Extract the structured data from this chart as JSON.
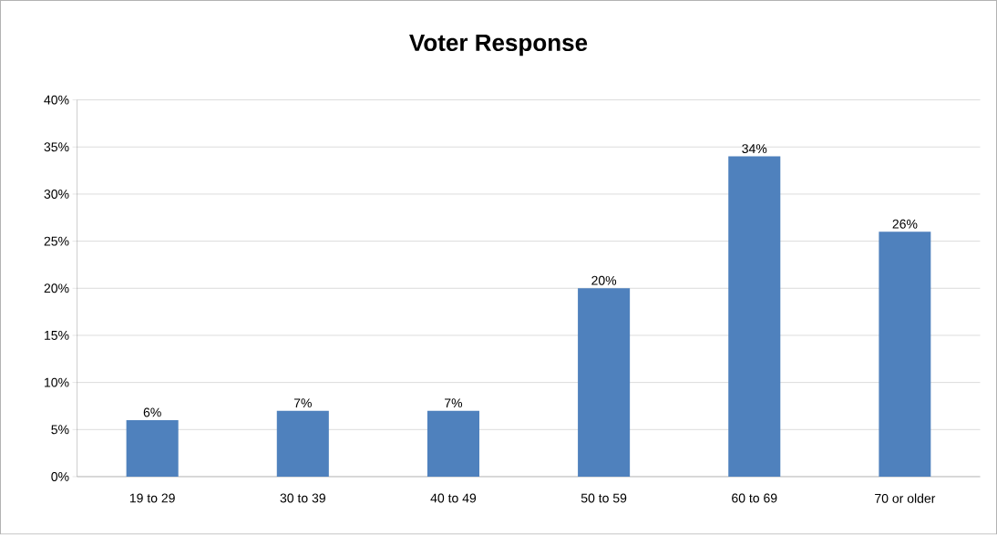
{
  "chart_data": {
    "type": "bar",
    "title": "Voter Response",
    "categories": [
      "19 to 29",
      "30 to 39",
      "40 to 49",
      "50 to 59",
      "60 to 69",
      "70 or older"
    ],
    "values": [
      6,
      7,
      7,
      20,
      34,
      26
    ],
    "value_labels": [
      "6%",
      "7%",
      "7%",
      "20%",
      "34%",
      "26%"
    ],
    "color": "#4f81bd",
    "ylim": [
      0,
      40
    ],
    "yticks": [
      {
        "value": 0,
        "label": "0%"
      },
      {
        "value": 5,
        "label": "5%"
      },
      {
        "value": 10,
        "label": "10%"
      },
      {
        "value": 15,
        "label": "15%"
      },
      {
        "value": 20,
        "label": "20%"
      },
      {
        "value": 25,
        "label": "25%"
      },
      {
        "value": 30,
        "label": "30%"
      },
      {
        "value": 35,
        "label": "35%"
      },
      {
        "value": 40,
        "label": "40%"
      }
    ],
    "grid": "y"
  }
}
